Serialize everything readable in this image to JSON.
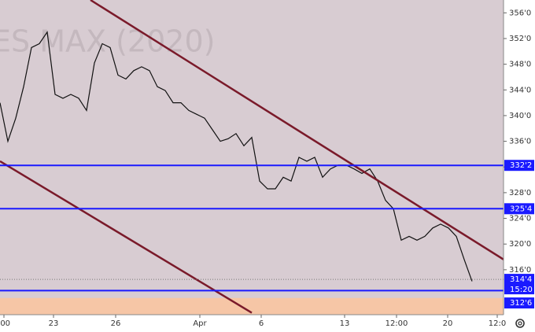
{
  "chart_data": {
    "type": "line",
    "title": "ES MAX (2020)",
    "x": [
      0,
      1,
      2,
      3,
      4,
      5,
      6,
      7,
      8,
      9,
      10,
      11,
      12,
      13,
      14,
      15,
      16,
      17,
      18,
      19,
      20,
      21,
      22,
      23,
      24,
      25,
      26,
      27,
      28,
      29,
      30,
      31,
      32,
      33,
      34,
      35,
      36,
      37,
      38,
      39,
      40,
      41,
      42,
      43,
      44,
      45,
      46,
      47,
      48,
      49,
      50,
      51,
      52,
      53,
      54,
      55,
      56,
      57,
      58,
      59,
      60
    ],
    "series": [
      {
        "name": "ES",
        "color": "#111111",
        "values": [
          342,
          336,
          339.6,
          344.5,
          350.6,
          351.2,
          353,
          343.3,
          342.7,
          343.3,
          342.7,
          340.8,
          348.2,
          351.2,
          350.6,
          346.3,
          345.7,
          347,
          347.6,
          347,
          344.5,
          343.9,
          342,
          342,
          340.8,
          340.2,
          339.6,
          337.8,
          336,
          336.4,
          337.2,
          335.3,
          336.6,
          329.8,
          328.6,
          328.6,
          330.4,
          329.8,
          333.5,
          332.9,
          333.5,
          330.4,
          331.7,
          332.3,
          332.3,
          331.7,
          331,
          331.7,
          329.8,
          326.8,
          325.5,
          320.6,
          321.2,
          320.6,
          321.2,
          322.5,
          323.1,
          322.5,
          321.2,
          317.6,
          314.2
        ]
      }
    ],
    "xlim": [
      0,
      64
    ],
    "xticks": [
      {
        "value": 0.5,
        "label": ":00"
      },
      {
        "value": 6.8,
        "label": "23"
      },
      {
        "value": 14.7,
        "label": "26"
      },
      {
        "value": 25.4,
        "label": "Apr"
      },
      {
        "value": 33.2,
        "label": "6"
      },
      {
        "value": 43.8,
        "label": "13"
      },
      {
        "value": 50.4,
        "label": "12:00"
      },
      {
        "value": 56.9,
        "label": "20"
      },
      {
        "value": 63.2,
        "label": "12:0"
      }
    ],
    "ylim": [
      309,
      358
    ],
    "yticks": [
      {
        "value": 316,
        "label": "316'0"
      },
      {
        "value": 320,
        "label": "320'0"
      },
      {
        "value": 324,
        "label": "324'0"
      },
      {
        "value": 328,
        "label": "328'0"
      },
      {
        "value": 332,
        "label": "332'0"
      },
      {
        "value": 336,
        "label": "336'0"
      },
      {
        "value": 340,
        "label": "340'0"
      },
      {
        "value": 344,
        "label": "344'0"
      },
      {
        "value": 348,
        "label": "348'0"
      },
      {
        "value": 352,
        "label": "352'0"
      },
      {
        "value": 356,
        "label": "356'0"
      }
    ],
    "hlines": [
      {
        "value": 332.25,
        "label": "332'2",
        "color": "#1a1aff"
      },
      {
        "value": 325.5,
        "label": "325'4",
        "color": "#1a1aff"
      },
      {
        "value": 312.75,
        "label": "312'6",
        "color": "#1a1aff"
      }
    ],
    "trendlines": [
      {
        "x": [
          11.5,
          64
        ],
        "y": [
          358,
          317.6
        ],
        "color": "#7a1a2a"
      },
      {
        "x": [
          0,
          32
        ],
        "y": [
          332.9,
          309.3
        ],
        "color": "#7a1a2a"
      }
    ],
    "zone": {
      "y": [
        309,
        311.6
      ],
      "color": "#f6c6a6"
    },
    "last_price": {
      "value": 314.5,
      "label": "314'4",
      "countdown": "15:20",
      "color": "#1a1aff"
    }
  }
}
